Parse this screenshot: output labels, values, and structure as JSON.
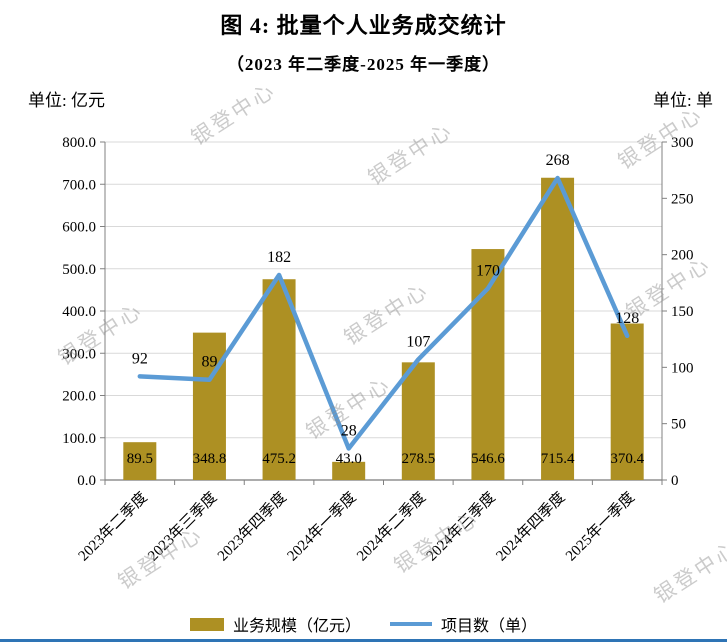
{
  "title": "图 4: 批量个人业务成交统计",
  "subtitle": "（2023 年二季度-2025 年一季度）",
  "left_unit": "单位: 亿元",
  "right_unit": "单位: 单",
  "watermark": "银登中心",
  "colors": {
    "bar": "#AD9023",
    "line": "#5B9BD5",
    "grid": "#D9D9D9",
    "axis": "#808080",
    "baseline": "#595959",
    "label": "#000000",
    "bottom_rule": "#2E74B5"
  },
  "chart_data": {
    "type": "bar+line",
    "title": "图 4: 批量个人业务成交统计",
    "subtitle": "（2023 年二季度-2025 年一季度）",
    "categories": [
      "2023年二季度",
      "2023年三季度",
      "2023年四季度",
      "2024年一季度",
      "2024年二季度",
      "2024年三季度",
      "2024年四季度",
      "2025年一季度"
    ],
    "series": [
      {
        "name": "业务规模（亿元）",
        "type": "bar",
        "axis": "left",
        "values": [
          89.5,
          348.8,
          475.2,
          43.0,
          278.5,
          546.6,
          715.4,
          370.4
        ],
        "labels": [
          "89.5",
          "348.8",
          "475.2",
          "43.0",
          "278.5",
          "546.6",
          "715.4",
          "370.4"
        ]
      },
      {
        "name": "项目数（单）",
        "type": "line",
        "axis": "right",
        "values": [
          92,
          89,
          182,
          28,
          107,
          170,
          268,
          128
        ],
        "labels": [
          "92",
          "89",
          "182",
          "28",
          "107",
          "170",
          "268",
          "128"
        ]
      }
    ],
    "left_axis": {
      "label": "单位: 亿元",
      "min": 0,
      "max": 800,
      "step": 100,
      "ticks": [
        "0.0",
        "100.0",
        "200.0",
        "300.0",
        "400.0",
        "500.0",
        "600.0",
        "700.0",
        "800.0"
      ]
    },
    "right_axis": {
      "label": "单位: 单",
      "min": 0,
      "max": 300,
      "step": 50,
      "ticks": [
        "0",
        "50",
        "100",
        "150",
        "200",
        "250",
        "300"
      ]
    },
    "grid": true,
    "legend_position": "bottom",
    "legend": [
      "业务规模（亿元）",
      "项目数（单）"
    ]
  }
}
